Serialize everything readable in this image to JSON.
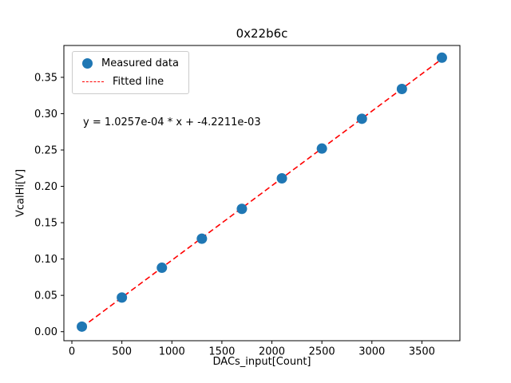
{
  "figure": {
    "title": "0x22b6c",
    "xlabel": "DACs_input[Count]",
    "ylabel": "VcalHi[V]",
    "annotation": "y = 1.0257e-04 * x + -4.2211e-03"
  },
  "legend": {
    "measured_label": "Measured data",
    "fitted_label": "Fitted line"
  },
  "chart_data": {
    "type": "scatter",
    "title": "0x22b6c",
    "xlabel": "DACs_input[Count]",
    "ylabel": "VcalHi[V]",
    "x": [
      100,
      500,
      900,
      1300,
      1700,
      2100,
      2500,
      2900,
      3300,
      3700
    ],
    "y": [
      0.007,
      0.047,
      0.088,
      0.128,
      0.169,
      0.211,
      0.252,
      0.293,
      0.334,
      0.377
    ],
    "fit": {
      "slope": 0.00010257,
      "intercept": -0.0042211
    },
    "annotation": "y = 1.0257e-04 * x + -4.2211e-03",
    "legend_entries": [
      "Measured data",
      "Fitted line"
    ],
    "legend_position": "upper left",
    "grid": false,
    "xlim": [
      -80,
      3880
    ],
    "ylim": [
      -0.0124,
      0.3938
    ],
    "xticks": [
      0,
      500,
      1000,
      1500,
      2000,
      2500,
      3000,
      3500
    ],
    "yticks": [
      0.0,
      0.05,
      0.1,
      0.15,
      0.2,
      0.25,
      0.3,
      0.35
    ],
    "colors": {
      "marker": "#1f77b4",
      "fit_line": "#ff0000"
    }
  }
}
